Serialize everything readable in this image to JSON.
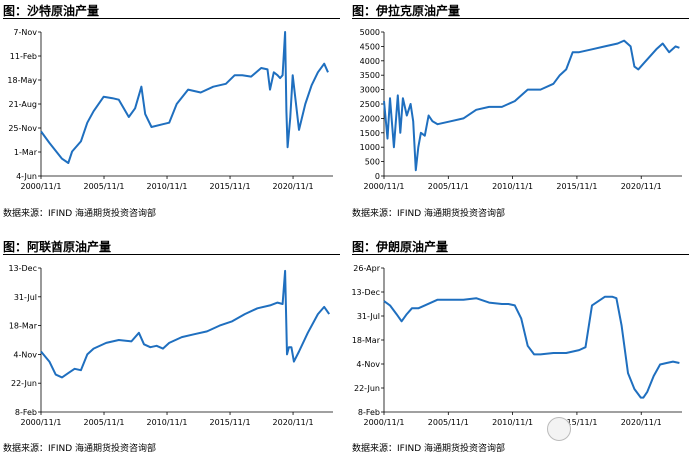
{
  "chart_data": [
    {
      "type": "line",
      "title": "图：沙特原油产量",
      "source": "数据来源：IFIND    海通期货投资咨询部",
      "line_color": "#1f6fbf",
      "ytick_labels": [
        "7-Nov",
        "11-Feb",
        "18-May",
        "21-Aug",
        "25-Nov",
        "1-Mar",
        "4-Jun"
      ],
      "xtick_labels": [
        "2000/11/1",
        "2005/11/1",
        "2010/11/1",
        "2015/11/1",
        "2020/11/1"
      ],
      "x": [
        2000.83,
        2001.5,
        2002.5,
        2003.0,
        2003.3,
        2004.0,
        2004.5,
        2005.0,
        2005.8,
        2006.5,
        2007.0,
        2007.8,
        2008.3,
        2008.8,
        2009.1,
        2009.6,
        2010.5,
        2011.0,
        2011.6,
        2012.5,
        2013.5,
        2014.5,
        2015.5,
        2016.2,
        2016.8,
        2017.5,
        2018.3,
        2018.8,
        2019.0,
        2019.3,
        2019.6,
        2019.8,
        2020.0,
        2020.2,
        2020.3,
        2020.4,
        2020.6,
        2020.8,
        2021.3,
        2021.8,
        2022.3,
        2022.8,
        2023.3,
        2023.6
      ],
      "y": [
        31,
        23,
        12,
        9,
        17,
        24,
        37,
        45,
        55,
        54,
        53,
        41,
        47,
        62,
        43,
        34,
        36,
        37,
        50,
        60,
        58,
        62,
        64,
        70,
        70,
        69,
        75,
        74,
        60,
        72,
        70,
        68,
        70,
        100,
        45,
        20,
        40,
        70,
        32,
        50,
        63,
        72,
        78,
        72
      ]
    },
    {
      "type": "line",
      "title": "图：伊拉克原油产量",
      "source": "数据来源：IFIND    海通期货投资咨询部",
      "line_color": "#1f6fbf",
      "ylim": [
        0,
        5000
      ],
      "yticks": [
        0,
        500,
        1000,
        1500,
        2000,
        2500,
        3000,
        3500,
        4000,
        4500,
        5000
      ],
      "xtick_labels": [
        "2000/11/1",
        "2005/11/1",
        "2010/11/1",
        "2015/11/1",
        "2020/11/1"
      ],
      "x": [
        2000.83,
        2001.1,
        2001.3,
        2001.6,
        2001.9,
        2002.1,
        2002.3,
        2002.6,
        2002.9,
        2003.1,
        2003.3,
        2003.5,
        2003.7,
        2004.0,
        2004.3,
        2004.6,
        2005.0,
        2006.0,
        2007.0,
        2008.0,
        2009.0,
        2010.0,
        2011.0,
        2012.0,
        2013.0,
        2014.0,
        2014.5,
        2015.0,
        2015.5,
        2016.0,
        2017.0,
        2018.0,
        2019.0,
        2019.5,
        2020.0,
        2020.3,
        2020.6,
        2021.0,
        2022.0,
        2022.5,
        2023.0,
        2023.5,
        2023.8
      ],
      "y": [
        2600,
        1300,
        2700,
        1000,
        2800,
        1500,
        2700,
        2100,
        2500,
        1900,
        200,
        1000,
        1500,
        1400,
        2100,
        1900,
        1800,
        1900,
        2000,
        2300,
        2400,
        2400,
        2600,
        3000,
        3000,
        3200,
        3500,
        3700,
        4300,
        4300,
        4400,
        4500,
        4600,
        4700,
        4500,
        3800,
        3700,
        3900,
        4400,
        4600,
        4300,
        4500,
        4450
      ]
    },
    {
      "type": "line",
      "title": "图：阿联酋原油产量",
      "source": "数据来源：IFIND    海通期货投资咨询部",
      "line_color": "#1f6fbf",
      "ytick_labels": [
        "13-Dec",
        "31-Jul",
        "18-Mar",
        "4-Nov",
        "22-Jun",
        "8-Feb"
      ],
      "xtick_labels": [
        "2000/11/1",
        "2005/11/1",
        "2010/11/1",
        "2015/11/1",
        "2020/11/1"
      ],
      "x": [
        2000.83,
        2001.5,
        2002.0,
        2002.5,
        2003.0,
        2003.5,
        2004.0,
        2004.5,
        2005.0,
        2006.0,
        2007.0,
        2008.0,
        2008.6,
        2009.0,
        2009.5,
        2010.0,
        2010.5,
        2011.0,
        2012.0,
        2013.0,
        2014.0,
        2015.0,
        2016.0,
        2017.0,
        2018.0,
        2019.0,
        2019.6,
        2020.0,
        2020.2,
        2020.35,
        2020.5,
        2020.7,
        2020.9,
        2021.3,
        2022.0,
        2022.8,
        2023.3,
        2023.7
      ],
      "y": [
        42,
        35,
        26,
        24,
        27,
        30,
        29,
        40,
        44,
        48,
        50,
        49,
        55,
        47,
        45,
        46,
        44,
        48,
        52,
        54,
        56,
        60,
        63,
        68,
        72,
        74,
        76,
        75,
        98,
        40,
        45,
        45,
        35,
        42,
        55,
        68,
        73,
        68
      ]
    },
    {
      "type": "line",
      "title": "图：伊朗原油产量",
      "source": "数据来源：IFIND    海通期货投资咨询部",
      "line_color": "#1f6fbf",
      "ytick_labels": [
        "26-Apr",
        "13-Dec",
        "31-Jul",
        "18-Mar",
        "4-Nov",
        "22-Jun",
        "8-Feb"
      ],
      "xtick_labels": [
        "2000/11/1",
        "2005/11/1",
        "2010/11/1",
        "2015/11/1",
        "2020/11/1"
      ],
      "x": [
        2000.83,
        2001.3,
        2001.8,
        2002.2,
        2002.6,
        2003.0,
        2003.5,
        2004.0,
        2004.5,
        2005.0,
        2006.0,
        2007.0,
        2008.0,
        2009.0,
        2010.0,
        2010.5,
        2011.0,
        2011.5,
        2012.0,
        2012.5,
        2013.0,
        2014.0,
        2015.0,
        2016.0,
        2016.5,
        2017.0,
        2018.0,
        2018.6,
        2018.9,
        2019.3,
        2019.8,
        2020.3,
        2020.8,
        2021.0,
        2021.3,
        2021.8,
        2022.3,
        2022.8,
        2023.3,
        2023.8
      ],
      "y": [
        77,
        74,
        68,
        63,
        68,
        72,
        72,
        74,
        76,
        78,
        78,
        78,
        79,
        76,
        75,
        75,
        74,
        65,
        46,
        40,
        40,
        41,
        41,
        43,
        45,
        74,
        80,
        80,
        79,
        60,
        27,
        16,
        10,
        10,
        14,
        25,
        33,
        34,
        35,
        34
      ]
    }
  ]
}
